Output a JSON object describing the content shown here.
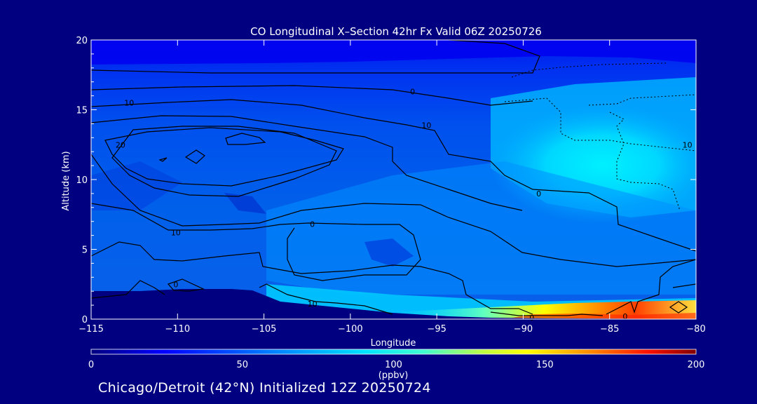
{
  "chart_data": {
    "type": "heatmap",
    "title": "CO Longitudinal X–Section 42hr  Fx Valid 06Z 20250726",
    "xlabel": "Longitude",
    "ylabel": "Altitude (km)",
    "xlim": [
      -115,
      -80
    ],
    "ylim": [
      0,
      20
    ],
    "x_ticks": [
      -115,
      -110,
      -105,
      -100,
      -95,
      -90,
      -85,
      -80
    ],
    "y_ticks": [
      0,
      5,
      10,
      15,
      20
    ],
    "colorbar": {
      "label": "(ppbv)",
      "range": [
        0,
        200
      ],
      "ticks": [
        0,
        50,
        100,
        150,
        200
      ],
      "colors": [
        "#000080",
        "#0000ff",
        "#0066ff",
        "#00ccff",
        "#00ffff",
        "#66ff99",
        "#ffff00",
        "#ff9900",
        "#ff0000",
        "#800000"
      ]
    },
    "contour_labels": [
      {
        "text": "10",
        "x": -112.8,
        "y": 15.5
      },
      {
        "text": "20",
        "x": -113.3,
        "y": 12.5
      },
      {
        "text": "0",
        "x": -96.4,
        "y": 16.3
      },
      {
        "text": "10",
        "x": -95.6,
        "y": 13.9
      },
      {
        "text": "10",
        "x": -110.1,
        "y": 6.2
      },
      {
        "text": "0",
        "x": -102.2,
        "y": 6.8
      },
      {
        "text": "0",
        "x": -89.1,
        "y": 9.0
      },
      {
        "text": "10",
        "x": -80.5,
        "y": 12.5
      },
      {
        "text": "0",
        "x": -110.1,
        "y": 2.5
      },
      {
        "text": "10",
        "x": -102.2,
        "y": 1.1
      },
      {
        "text": "0",
        "x": -89.5,
        "y": 0.1
      },
      {
        "text": "0",
        "x": -84.1,
        "y": 0.2
      }
    ],
    "grid": false
  },
  "footer": "Chicago/Detroit (42°N) Initialized 12Z 20250724"
}
